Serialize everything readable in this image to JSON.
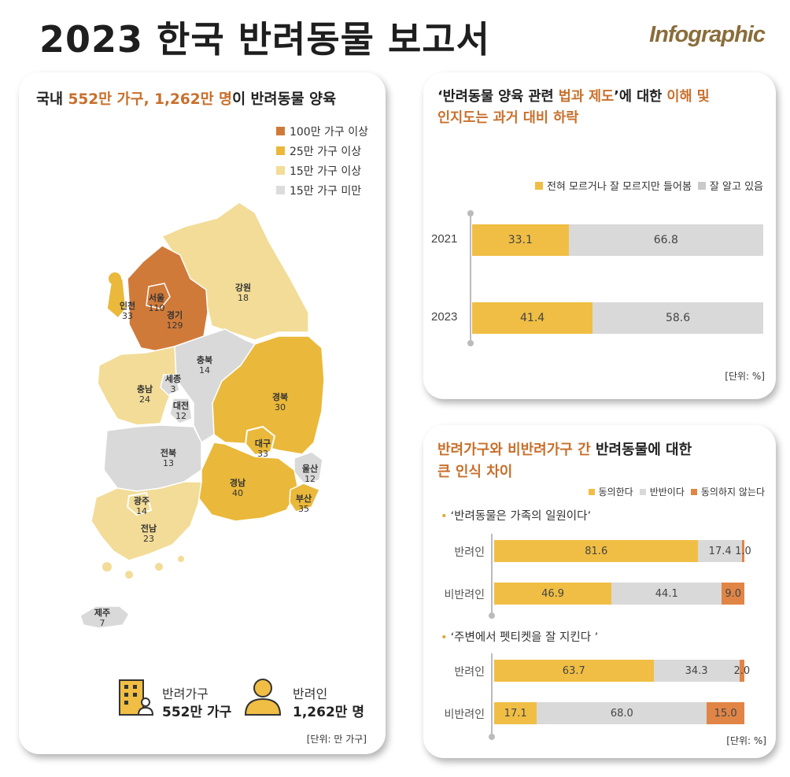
{
  "header": {
    "title": "2023 한국 반려동물 보고서",
    "brand": "Infographic"
  },
  "colors": {
    "dark": "#d07a3a",
    "mid": "#eab83a",
    "light": "#f2dc97",
    "gray": "#d9d9d9",
    "bar_gold": "#f0be44",
    "bar_gray": "#d9d9d9",
    "bar_orange": "#e08546"
  },
  "left_panel": {
    "title_prefix": "국내 ",
    "title_highlight": "552만 가구, 1,262만 명",
    "title_suffix": "이 반려동물 양육",
    "legend": [
      "100만 가구 이상",
      "25만 가구 이상",
      "15만 가구 이상",
      "15만 가구 미만"
    ],
    "regions": [
      {
        "name": "서울",
        "value": "110"
      },
      {
        "name": "인천",
        "value": "33"
      },
      {
        "name": "경기",
        "value": "129"
      },
      {
        "name": "강원",
        "value": "18"
      },
      {
        "name": "충북",
        "value": "14"
      },
      {
        "name": "세종",
        "value": "3"
      },
      {
        "name": "충남",
        "value": "24"
      },
      {
        "name": "대전",
        "value": "12"
      },
      {
        "name": "경북",
        "value": "30"
      },
      {
        "name": "대구",
        "value": "33"
      },
      {
        "name": "울산",
        "value": "12"
      },
      {
        "name": "전북",
        "value": "13"
      },
      {
        "name": "경남",
        "value": "40"
      },
      {
        "name": "부산",
        "value": "35"
      },
      {
        "name": "광주",
        "value": "14"
      },
      {
        "name": "전남",
        "value": "23"
      },
      {
        "name": "제주",
        "value": "7"
      }
    ],
    "summary": {
      "household_label": "반려가구",
      "household_value": "552만 가구",
      "person_label": "반려인",
      "person_value": "1,262만 명"
    },
    "unit": "[단위: 만 가구]"
  },
  "top_right": {
    "title_line1_a": "‘반려동물 양육 관련 ",
    "title_line1_b": "법과 제도",
    "title_line1_c": "’에 대한 ",
    "title_line1_d": "이해 및",
    "title_line2_a": "인지도",
    "title_line2_b": "는 과거 대비 하락",
    "legend": [
      "전혀 모르거나 잘 모르지만 들어봄",
      "잘 알고 있음"
    ],
    "unit": "[단위: %]"
  },
  "bottom_right": {
    "title_line1_a": "반려가구와 비반려가구 간",
    "title_line1_b": " 반려동물에 대한",
    "title_line2": "큰 인식 차이",
    "legend": [
      "동의한다",
      "반반이다",
      "동의하지 않는다"
    ],
    "statements": [
      "‘반려동물은 가족의 일원이다’",
      "‘주변에서 펫티켓을 잘 지킨다 ’"
    ],
    "unit": "[단위: %]"
  },
  "chart_data": [
    {
      "type": "bar",
      "orientation": "horizontal-stacked",
      "categories": [
        "2021",
        "2023"
      ],
      "series": [
        {
          "name": "전혀 모르거나 잘 모르지만 들어봄",
          "values": [
            33.1,
            41.4
          ],
          "labels": [
            "33.1",
            "41.4"
          ]
        },
        {
          "name": "잘 알고 있음",
          "values": [
            66.8,
            58.6
          ],
          "labels": [
            "66.8",
            "58.6"
          ]
        }
      ],
      "legend": "top-right"
    },
    {
      "type": "bar",
      "orientation": "horizontal-stacked",
      "groups": [
        {
          "statement": "‘반려동물은 가족의 일원이다’",
          "categories": [
            "반려인",
            "비반려인"
          ],
          "series": [
            {
              "name": "동의한다",
              "values": [
                81.6,
                46.9
              ],
              "labels": [
                "81.6",
                "46.9"
              ]
            },
            {
              "name": "반반이다",
              "values": [
                17.4,
                44.1
              ],
              "labels": [
                "17.4",
                "44.1"
              ]
            },
            {
              "name": "동의하지 않는다",
              "values": [
                1.0,
                9.0
              ],
              "labels": [
                "1.0",
                "9.0"
              ]
            }
          ]
        },
        {
          "statement": "‘주변에서 펫티켓을 잘 지킨다 ’",
          "categories": [
            "반려인",
            "비반려인"
          ],
          "series": [
            {
              "name": "동의한다",
              "values": [
                63.7,
                17.1
              ],
              "labels": [
                "63.7",
                "17.1"
              ]
            },
            {
              "name": "반반이다",
              "values": [
                34.3,
                68.0
              ],
              "labels": [
                "34.3",
                "68.0"
              ]
            },
            {
              "name": "동의하지 않는다",
              "values": [
                2.0,
                15.0
              ],
              "labels": [
                "2.0",
                "15.0"
              ]
            }
          ]
        }
      ],
      "legend": "top-right"
    }
  ]
}
